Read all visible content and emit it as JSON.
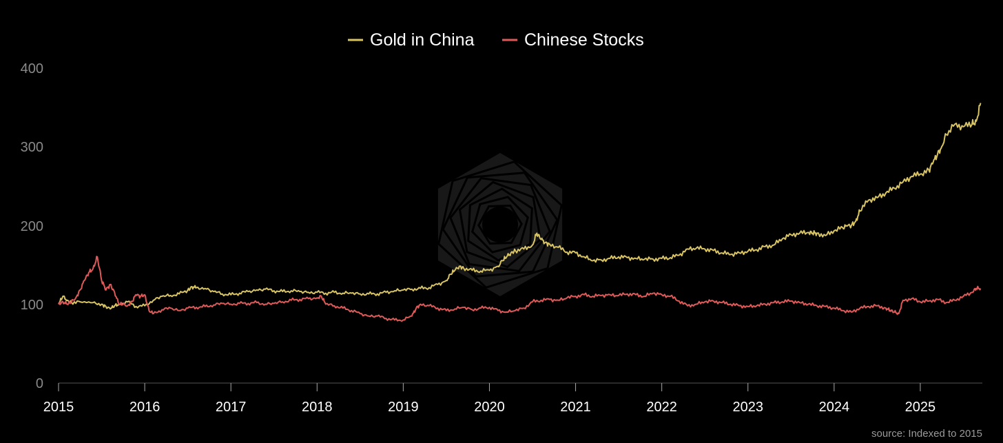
{
  "chart_data": {
    "type": "line",
    "title": "",
    "xlabel": "",
    "ylabel": "",
    "ylim": [
      0,
      400
    ],
    "xlim": [
      2015.0,
      2025.72
    ],
    "yticks": [
      "0",
      "100",
      "200",
      "300",
      "400"
    ],
    "xticks": [
      "2015",
      "2016",
      "2017",
      "2018",
      "2019",
      "2020",
      "2021",
      "2022",
      "2023",
      "2024",
      "2025"
    ],
    "grid": false,
    "legend_position": "top-center",
    "source_note": "source: Indexed to 2015",
    "series": [
      {
        "name": "Gold in China",
        "color": "#d9c463",
        "x": [
          2015.0,
          2015.05,
          2015.1,
          2015.15,
          2015.25,
          2015.4,
          2015.5,
          2015.55,
          2015.6,
          2015.65,
          2015.7,
          2015.8,
          2015.9,
          2016.0,
          2016.1,
          2016.2,
          2016.3,
          2016.4,
          2016.5,
          2016.55,
          2016.6,
          2016.7,
          2016.8,
          2016.9,
          2017.0,
          2017.1,
          2017.2,
          2017.3,
          2017.4,
          2017.5,
          2017.6,
          2017.7,
          2017.8,
          2017.9,
          2018.0,
          2018.1,
          2018.2,
          2018.3,
          2018.4,
          2018.5,
          2018.6,
          2018.7,
          2018.8,
          2018.9,
          2019.0,
          2019.1,
          2019.2,
          2019.3,
          2019.4,
          2019.5,
          2019.55,
          2019.6,
          2019.65,
          2019.7,
          2019.8,
          2019.9,
          2020.0,
          2020.1,
          2020.15,
          2020.2,
          2020.25,
          2020.3,
          2020.4,
          2020.5,
          2020.55,
          2020.6,
          2020.65,
          2020.7,
          2020.8,
          2020.9,
          2021.0,
          2021.1,
          2021.2,
          2021.3,
          2021.4,
          2021.5,
          2021.6,
          2021.7,
          2021.8,
          2021.9,
          2022.0,
          2022.1,
          2022.2,
          2022.3,
          2022.4,
          2022.5,
          2022.6,
          2022.7,
          2022.8,
          2022.9,
          2023.0,
          2023.1,
          2023.2,
          2023.3,
          2023.4,
          2023.5,
          2023.6,
          2023.7,
          2023.75,
          2023.8,
          2023.9,
          2024.0,
          2024.1,
          2024.15,
          2024.2,
          2024.25,
          2024.3,
          2024.4,
          2024.5,
          2024.6,
          2024.7,
          2024.8,
          2024.9,
          2025.0,
          2025.1,
          2025.15,
          2025.2,
          2025.25,
          2025.3,
          2025.4,
          2025.5,
          2025.6,
          2025.65,
          2025.7
        ],
        "values": [
          100,
          110,
          105,
          102,
          103,
          102,
          100,
          97,
          94,
          98,
          100,
          103,
          97,
          98,
          105,
          110,
          111,
          113,
          118,
          122,
          121,
          120,
          116,
          113,
          112,
          114,
          116,
          118,
          119,
          117,
          116,
          117,
          116,
          115,
          115,
          114,
          115,
          114,
          114,
          113,
          113,
          113,
          115,
          117,
          118,
          119,
          120,
          121,
          125,
          130,
          138,
          143,
          148,
          146,
          143,
          142,
          143,
          148,
          155,
          160,
          165,
          168,
          170,
          175,
          190,
          182,
          178,
          176,
          172,
          166,
          165,
          160,
          155,
          156,
          158,
          160,
          159,
          158,
          157,
          157,
          158,
          159,
          162,
          170,
          171,
          170,
          168,
          165,
          163,
          165,
          167,
          169,
          173,
          175,
          183,
          188,
          190,
          191,
          190,
          190,
          187,
          193,
          197,
          199,
          200,
          205,
          218,
          232,
          235,
          241,
          247,
          255,
          262,
          265,
          270,
          280,
          290,
          300,
          315,
          328,
          325,
          328,
          332,
          355
        ]
      },
      {
        "name": "Chinese Stocks",
        "color": "#e05a5a",
        "x": [
          2015.0,
          2015.05,
          2015.1,
          2015.15,
          2015.2,
          2015.25,
          2015.3,
          2015.35,
          2015.4,
          2015.45,
          2015.5,
          2015.55,
          2015.6,
          2015.65,
          2015.7,
          2015.75,
          2015.8,
          2015.85,
          2015.9,
          2015.95,
          2016.0,
          2016.05,
          2016.1,
          2016.2,
          2016.3,
          2016.4,
          2016.5,
          2016.6,
          2016.7,
          2016.8,
          2016.9,
          2017.0,
          2017.1,
          2017.2,
          2017.3,
          2017.4,
          2017.5,
          2017.6,
          2017.7,
          2017.8,
          2017.9,
          2018.0,
          2018.05,
          2018.1,
          2018.2,
          2018.3,
          2018.4,
          2018.5,
          2018.6,
          2018.7,
          2018.8,
          2018.9,
          2019.0,
          2019.1,
          2019.15,
          2019.2,
          2019.3,
          2019.4,
          2019.5,
          2019.6,
          2019.7,
          2019.8,
          2019.9,
          2020.0,
          2020.1,
          2020.2,
          2020.3,
          2020.4,
          2020.5,
          2020.6,
          2020.7,
          2020.8,
          2020.9,
          2021.0,
          2021.1,
          2021.2,
          2021.3,
          2021.4,
          2021.5,
          2021.6,
          2021.7,
          2021.8,
          2021.9,
          2022.0,
          2022.1,
          2022.2,
          2022.3,
          2022.4,
          2022.5,
          2022.6,
          2022.7,
          2022.8,
          2022.9,
          2023.0,
          2023.1,
          2023.2,
          2023.3,
          2023.4,
          2023.5,
          2023.6,
          2023.7,
          2023.8,
          2023.9,
          2024.0,
          2024.1,
          2024.2,
          2024.3,
          2024.4,
          2024.5,
          2024.6,
          2024.65,
          2024.7,
          2024.75,
          2024.8,
          2024.9,
          2025.0,
          2025.1,
          2025.2,
          2025.3,
          2025.4,
          2025.5,
          2025.6,
          2025.65,
          2025.7
        ],
        "values": [
          100,
          103,
          100,
          103,
          108,
          118,
          130,
          140,
          145,
          160,
          130,
          118,
          125,
          115,
          100,
          100,
          98,
          103,
          112,
          110,
          112,
          92,
          88,
          93,
          95,
          92,
          95,
          96,
          97,
          99,
          101,
          100,
          101,
          101,
          102,
          100,
          101,
          103,
          105,
          106,
          107,
          108,
          110,
          100,
          98,
          95,
          92,
          88,
          85,
          85,
          82,
          80,
          80,
          85,
          95,
          100,
          98,
          95,
          92,
          94,
          96,
          93,
          95,
          96,
          92,
          90,
          92,
          95,
          103,
          105,
          106,
          105,
          108,
          110,
          112,
          110,
          111,
          112,
          111,
          113,
          112,
          110,
          114,
          112,
          110,
          104,
          98,
          100,
          103,
          104,
          102,
          100,
          98,
          97,
          98,
          100,
          102,
          103,
          104,
          102,
          100,
          98,
          97,
          95,
          92,
          90,
          95,
          97,
          98,
          95,
          92,
          90,
          88,
          105,
          107,
          103,
          104,
          106,
          102,
          105,
          110,
          115,
          120,
          120
        ]
      }
    ]
  }
}
